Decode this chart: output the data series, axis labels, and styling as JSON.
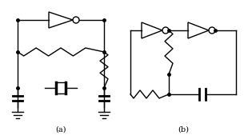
{
  "label_a": "(a)",
  "label_b": "(b)",
  "bg_color": "#ffffff",
  "line_color": "#000000",
  "lw": 1.0,
  "dot_r": 2.0,
  "fig_width": 3.1,
  "fig_height": 1.74,
  "dpi": 100
}
